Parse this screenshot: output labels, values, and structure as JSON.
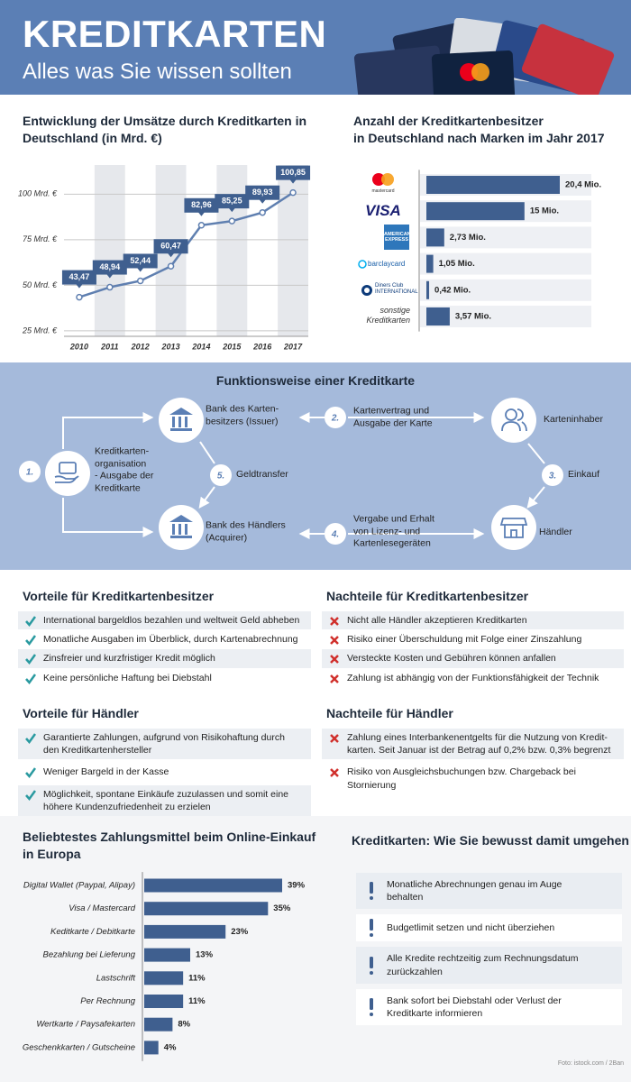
{
  "header": {
    "title": "KREDITKARTEN",
    "subtitle": "Alles was Sie wissen sollten"
  },
  "chart_data": [
    {
      "type": "line",
      "title": "Entwicklung der Umsätze durch Kreditkarten in\nDeutschland (in Mrd. €)",
      "categories": [
        "2010",
        "2011",
        "2012",
        "2013",
        "2014",
        "2015",
        "2016",
        "2017"
      ],
      "values": [
        43.47,
        48.94,
        52.44,
        60.47,
        82.96,
        85.25,
        89.93,
        100.85
      ],
      "value_labels": [
        "43,47",
        "48,94",
        "52,44",
        "60,47",
        "82,96",
        "85,25",
        "89,93",
        "100,85"
      ],
      "ylim": [
        22,
        116
      ],
      "yticks": [
        {
          "value": 25,
          "label": "25 Mrd. €"
        },
        {
          "value": 50,
          "label": "50 Mrd. €"
        },
        {
          "value": 75,
          "label": "75 Mrd. €"
        },
        {
          "value": 100,
          "label": "100 Mrd. €"
        }
      ],
      "color": "#3f5f8f",
      "grid": true
    },
    {
      "type": "hbar",
      "title": "Anzahl der Kreditkartenbesitzer\nin Deutschland nach Marken im Jahr 2017",
      "categories": [
        "mastercard",
        "VISA",
        "AMERICAN EXPRESS",
        "barclaycard",
        "Diners Club INTERNATIONAL",
        "sonstige\nKreditkarten"
      ],
      "values": [
        20.4,
        15,
        2.73,
        1.05,
        0.42,
        3.57
      ],
      "value_labels": [
        "20,4 Mio.",
        "15 Mio.",
        "2,73 Mio.",
        "1,05 Mio.",
        "0,42 Mio.",
        "3,57 Mio."
      ],
      "color": "#3f5f8f"
    },
    {
      "type": "hbar",
      "title": "Beliebtestes Zahlungsmittel beim Online-Einkauf\nin Europa",
      "categories": [
        "Digital Wallet (Paypal, Alipay)",
        "Visa / Mastercard",
        "Keditkarte / Debitkarte",
        "Bezahlung bei Lieferung",
        "Lastschrift",
        "Per Rechnung",
        "Wertkarte / Paysafekarten",
        "Geschenkkarten / Gutscheine"
      ],
      "values": [
        39,
        35,
        23,
        13,
        11,
        11,
        8,
        4
      ],
      "value_labels": [
        "39%",
        "35%",
        "23%",
        "13%",
        "11%",
        "11%",
        "8%",
        "4%"
      ],
      "color": "#3f5f8f"
    }
  ],
  "process": {
    "title": "Funktionsweise einer Kreditkarte",
    "parties": [
      "Bank des Karten-\nbesitzers (Issuer)",
      "Karteninhaber",
      "Bank des Händlers\n(Acquirer)",
      "Händler"
    ],
    "steps": [
      {
        "number": "1.",
        "label": "Kreditkarten-\norganisation\n- Ausgabe der\nKreditkarte"
      },
      {
        "number": "2.",
        "label": "Kartenvertrag und\nAusgabe der Karte"
      },
      {
        "number": "3.",
        "label": "Einkauf"
      },
      {
        "number": "4.",
        "label": "Vergabe und Erhalt\nvon Lizenz- und\nKartenlesegeräten"
      },
      {
        "number": "5.",
        "label": "Geldtransfer"
      }
    ]
  },
  "pros_cons": {
    "owner_pros": {
      "title": "Vorteile für Kreditkartenbesitzer",
      "items": [
        "International bargeldlos bezahlen und weltweit Geld abheben",
        "Monatliche Ausgaben im Überblick, durch Kartenabrechnung",
        "Zinsfreier und kurzfristiger Kredit möglich",
        "Keine persönliche Haftung bei Diebstahl"
      ]
    },
    "owner_cons": {
      "title": "Nachteile für Kreditkartenbesitzer",
      "items": [
        "Nicht alle Händler akzeptieren Kreditkarten",
        "Risiko einer Überschuldung mit Folge einer Zinszahlung",
        "Versteckte Kosten und Gebühren können anfallen",
        "Zahlung ist abhängig von der Funktionsfähigkeit der Technik"
      ]
    },
    "merchant_pros": {
      "title": "Vorteile für Händler",
      "items": [
        "Garantierte Zahlungen, aufgrund von Risikohaftung durch\nden Kreditkartenhersteller",
        "Weniger Bargeld in der Kasse",
        "Möglichkeit, spontane Einkäufe zuzulassen und somit eine\nhöhere Kundenzufriedenheit zu erzielen"
      ]
    },
    "merchant_cons": {
      "title": "Nachteile für Händler",
      "items": [
        "Zahlung eines Interbankenentgelts für die Nutzung von Kredit-\nkarten. Seit Januar ist der Betrag auf 0,2% bzw. 0,3% begrenzt",
        "Risiko von Ausgleichsbuchungen bzw. Chargeback bei\nStornierung"
      ]
    }
  },
  "tips": {
    "title": "Kreditkarten: Wie Sie bewusst damit umgehen",
    "items": [
      "Monatliche Abrechnungen genau im Auge\nbehalten",
      "Budgetlimit setzen und nicht überziehen",
      "Alle Kredite rechtzeitig zum Rechnungsdatum\nzurückzahlen",
      "Bank sofort bei Diebstahl oder Verlust der\nKreditkarte informieren"
    ]
  },
  "credit": "Foto: istock.com / 2Ban"
}
